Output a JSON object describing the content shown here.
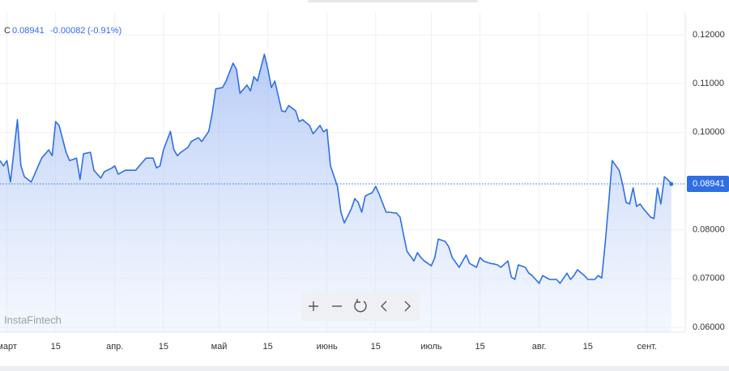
{
  "chart_data": {
    "type": "area",
    "symbol": "C",
    "last_price": 0.08941,
    "change": -0.00082,
    "change_percent": {
      "value": -0.91,
      "label": "(-0.91%)"
    },
    "watermark": "InstaFintech",
    "color": "#2f6fe4",
    "grid": true,
    "xlim": [
      -2,
      195
    ],
    "ylim": [
      0.059,
      0.12465
    ],
    "xticks": [
      {
        "value": 0,
        "label": "март"
      },
      {
        "value": 14,
        "label": "15"
      },
      {
        "value": 31,
        "label": "апр."
      },
      {
        "value": 45,
        "label": "15"
      },
      {
        "value": 61,
        "label": "май"
      },
      {
        "value": 75,
        "label": "15"
      },
      {
        "value": 92,
        "label": "июнь"
      },
      {
        "value": 106,
        "label": "15"
      },
      {
        "value": 122,
        "label": "июль"
      },
      {
        "value": 136,
        "label": "15"
      },
      {
        "value": 153,
        "label": "авг."
      },
      {
        "value": 167,
        "label": "15"
      },
      {
        "value": 184,
        "label": "сент."
      }
    ],
    "yticks": [
      {
        "value": 0.12,
        "label": "0.12000"
      },
      {
        "value": 0.11,
        "label": "0.11000"
      },
      {
        "value": 0.1,
        "label": "0.10000"
      },
      {
        "value": 0.08,
        "label": "0.08000"
      },
      {
        "value": 0.07,
        "label": "0.07000"
      },
      {
        "value": 0.06,
        "label": "0.06000"
      }
    ],
    "x": [
      -2,
      -1,
      0,
      1,
      3,
      4,
      5,
      7,
      9,
      10,
      12,
      13,
      14,
      15,
      17,
      18,
      20,
      21,
      22,
      24,
      25,
      27,
      28,
      30,
      31,
      32,
      34,
      35,
      37,
      39,
      40,
      42,
      43,
      44,
      45,
      47,
      48,
      49,
      50,
      52,
      53,
      55,
      56,
      58,
      59,
      60,
      62,
      63,
      65,
      66,
      67,
      69,
      70,
      71,
      72,
      74,
      75,
      76,
      77,
      79,
      80,
      81,
      83,
      84,
      85,
      87,
      88,
      90,
      91,
      92,
      93,
      95,
      96,
      97,
      99,
      100,
      101,
      102,
      103,
      104,
      105,
      106,
      107,
      109,
      110,
      112,
      113,
      114,
      115,
      117,
      118,
      119,
      120,
      122,
      123,
      124,
      126,
      127,
      128,
      130,
      131,
      132,
      133,
      135,
      136,
      137,
      139,
      140,
      141,
      142,
      144,
      145,
      146,
      147,
      149,
      150,
      151,
      152,
      153,
      154,
      156,
      157,
      158,
      159,
      161,
      162,
      163,
      164,
      166,
      167,
      169,
      170,
      171,
      172,
      173,
      174,
      176,
      177,
      178,
      179,
      180,
      181,
      182,
      183,
      185,
      186,
      187,
      188,
      189,
      190,
      191
    ],
    "values": [
      0.0942,
      0.0931,
      0.0942,
      0.0898,
      0.1026,
      0.0931,
      0.0909,
      0.0898,
      0.0931,
      0.0947,
      0.0964,
      0.0952,
      0.1022,
      0.1014,
      0.0959,
      0.0942,
      0.0947,
      0.0903,
      0.0956,
      0.0959,
      0.0922,
      0.0906,
      0.0919,
      0.0926,
      0.0931,
      0.0914,
      0.0922,
      0.0922,
      0.0922,
      0.0939,
      0.0947,
      0.0947,
      0.0927,
      0.0931,
      0.0964,
      0.1002,
      0.0964,
      0.0952,
      0.0959,
      0.0969,
      0.0981,
      0.0989,
      0.0981,
      0.1002,
      0.1039,
      0.1089,
      0.1092,
      0.1105,
      0.1142,
      0.1129,
      0.108,
      0.1097,
      0.1085,
      0.1114,
      0.1105,
      0.116,
      0.113,
      0.1092,
      0.1105,
      0.1044,
      0.1042,
      0.1055,
      0.1044,
      0.1022,
      0.1026,
      0.1014,
      0.0997,
      0.1014,
      0.1001,
      0.1006,
      0.0931,
      0.0889,
      0.0836,
      0.0814,
      0.0843,
      0.0864,
      0.0856,
      0.0836,
      0.0869,
      0.0873,
      0.0876,
      0.0889,
      0.0873,
      0.0836,
      0.0836,
      0.0834,
      0.0826,
      0.079,
      0.0756,
      0.0736,
      0.0753,
      0.0743,
      0.0736,
      0.0726,
      0.0743,
      0.0781,
      0.0776,
      0.0765,
      0.0743,
      0.0723,
      0.0736,
      0.0748,
      0.0731,
      0.0723,
      0.0743,
      0.0736,
      0.0731,
      0.073,
      0.0728,
      0.0723,
      0.0736,
      0.0703,
      0.0698,
      0.0728,
      0.0723,
      0.0711,
      0.0706,
      0.0698,
      0.069,
      0.0706,
      0.0698,
      0.0698,
      0.0698,
      0.069,
      0.0711,
      0.0698,
      0.0706,
      0.0718,
      0.0706,
      0.0698,
      0.0698,
      0.0706,
      0.0701,
      0.0773,
      0.0856,
      0.0942,
      0.0922,
      0.0893,
      0.0856,
      0.0853,
      0.0886,
      0.0848,
      0.0853,
      0.0843,
      0.0826,
      0.0823,
      0.0886,
      0.0853,
      0.0909,
      0.0903,
      0.0894
    ]
  }
}
